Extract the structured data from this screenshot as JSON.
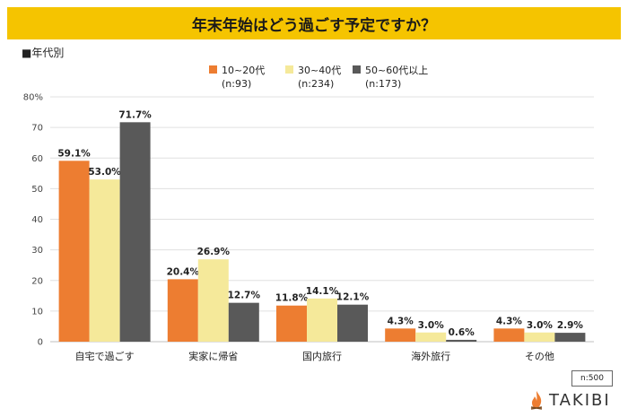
{
  "title": "年末年始はどう過ごす予定ですか？",
  "subtitle": "■年代別",
  "sample_note": "n:500",
  "logo_text": "TAKIBI",
  "chart_data": {
    "type": "bar",
    "categories": [
      "自宅で過ごす",
      "実家に帰省",
      "国内旅行",
      "海外旅行",
      "その他"
    ],
    "series": [
      {
        "name": "10~20代",
        "n_label": "(n:93)",
        "color": "#ed7d31",
        "values": [
          59.1,
          20.4,
          11.8,
          4.3,
          4.3
        ]
      },
      {
        "name": "30~40代",
        "n_label": "(n:234)",
        "color": "#f5e99a",
        "values": [
          53.0,
          26.9,
          14.1,
          3.0,
          3.0
        ]
      },
      {
        "name": "50~60代以上",
        "n_label": "(n:173)",
        "color": "#595959",
        "values": [
          71.7,
          12.7,
          12.1,
          0.6,
          2.9
        ]
      }
    ],
    "ylim": [
      0,
      80
    ],
    "yticks": [
      0,
      10,
      20,
      30,
      40,
      50,
      60,
      70,
      80
    ],
    "ytick_labels": [
      "0",
      "10",
      "20",
      "30",
      "40",
      "50",
      "60",
      "70",
      "80%"
    ],
    "value_suffix": "%",
    "grid": true,
    "legend_position": "top-center"
  }
}
